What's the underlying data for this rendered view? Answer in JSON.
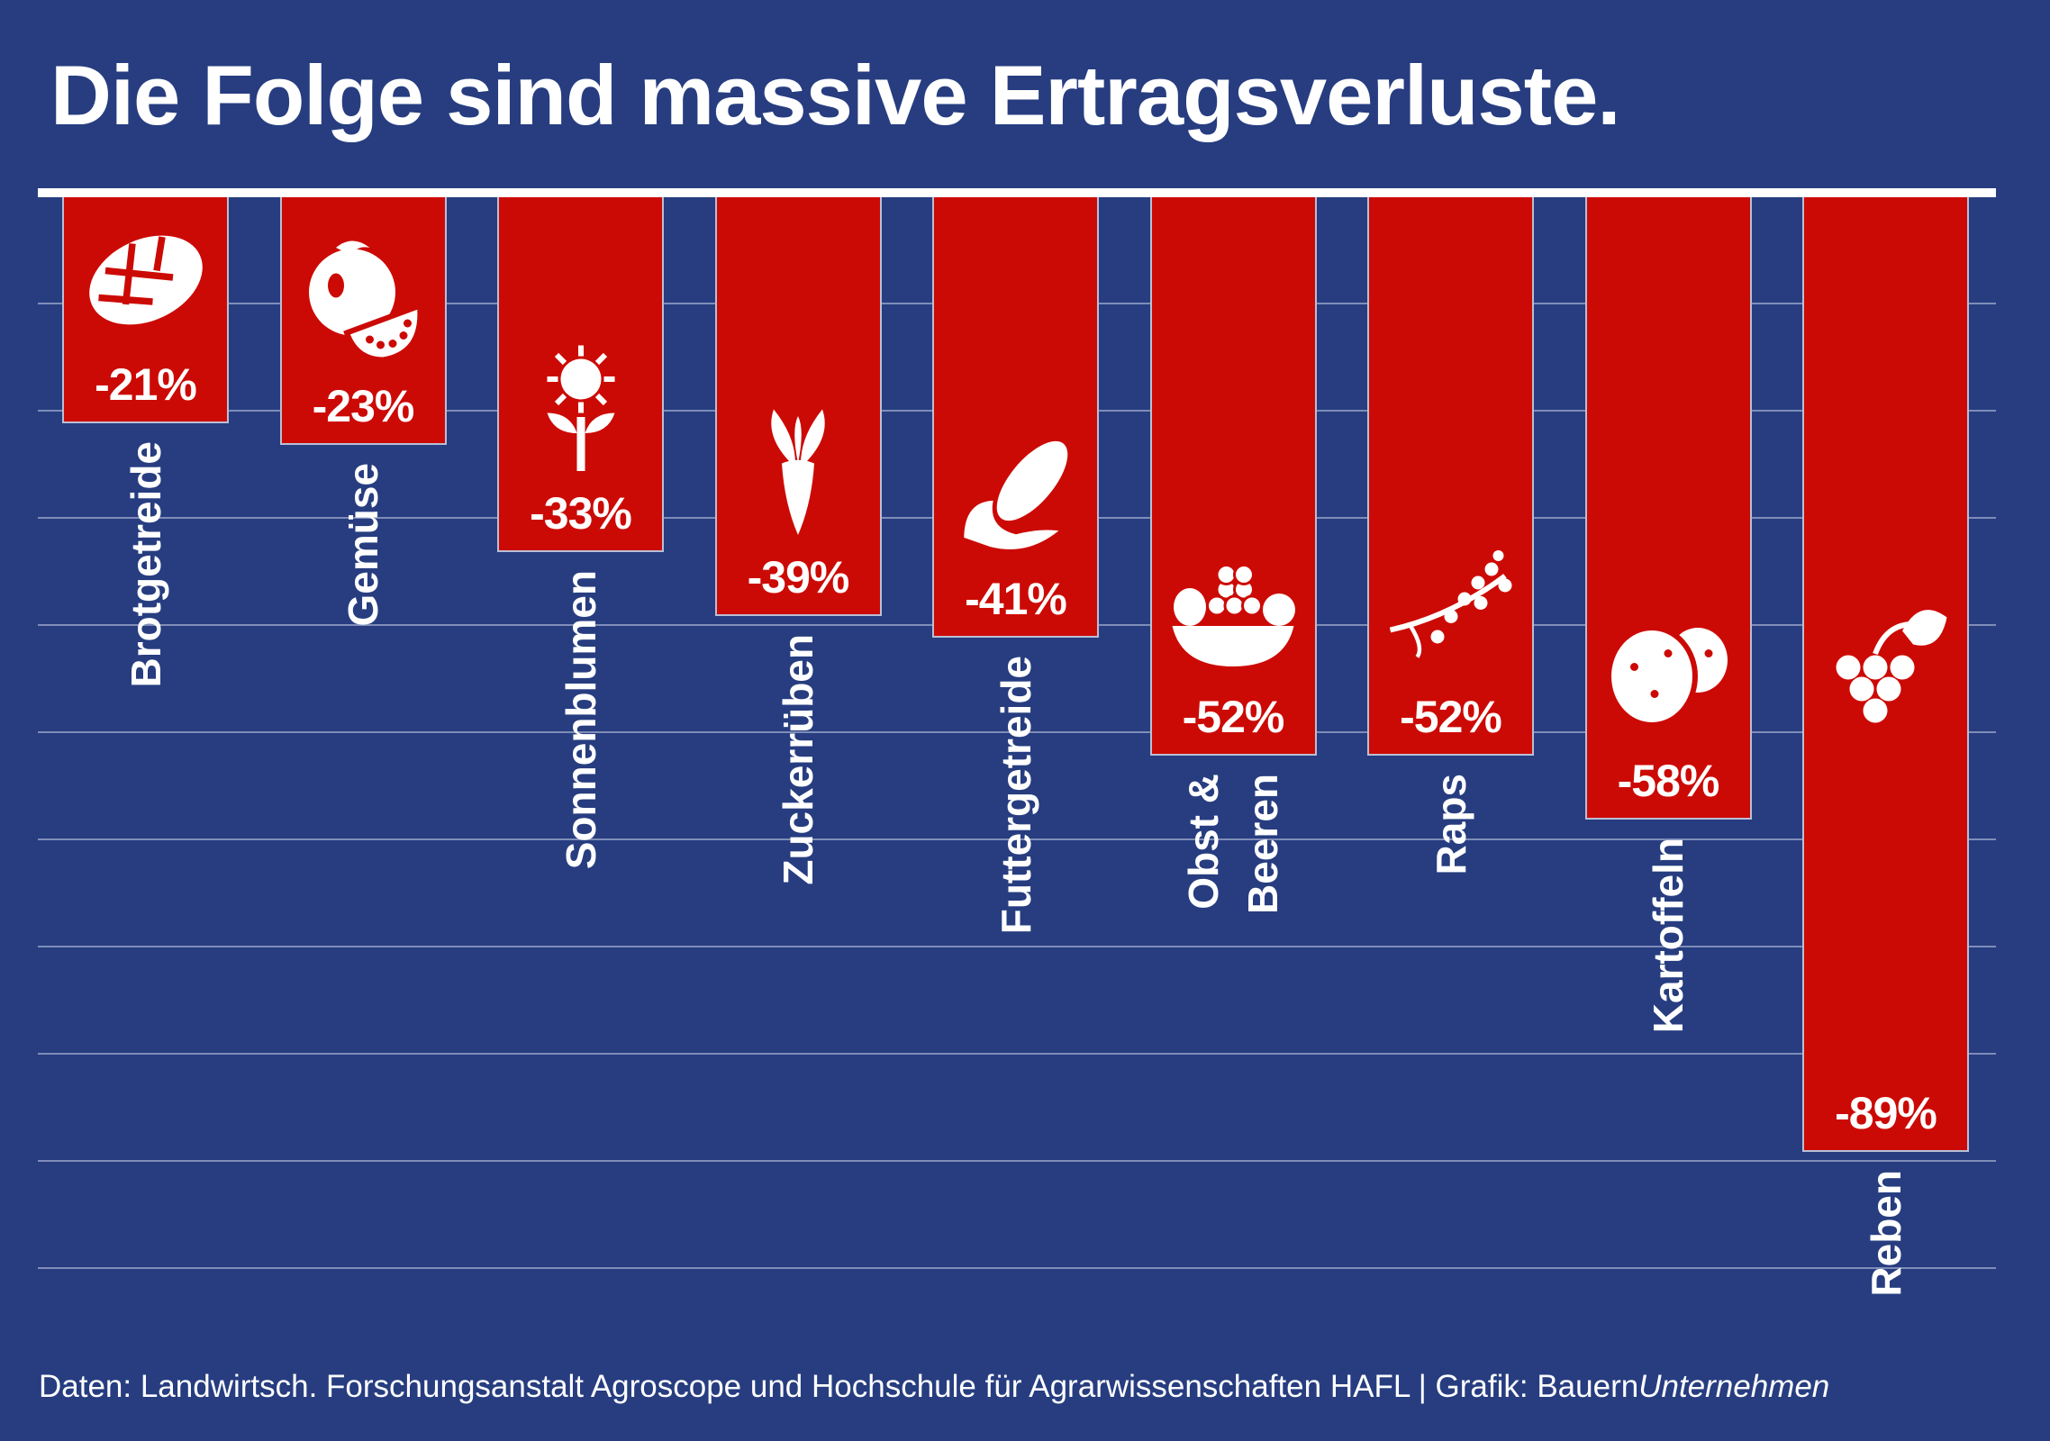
{
  "colors": {
    "background": "#273d80",
    "bar": "#cc0a05",
    "text": "#ffffff",
    "grid": "#7f8db8"
  },
  "chart_data": {
    "type": "bar",
    "title": "Die Folge sind massive Ertragsverluste.",
    "orientation": "vertical-downward",
    "categories": [
      "Brotgetreide",
      "Gemüse",
      "Sonnenblumen",
      "Zuckerrüben",
      "Futtergetreide",
      "Obst &\nBeeren",
      "Raps",
      "Kartoffeln",
      "Reben"
    ],
    "values": [
      -21,
      -23,
      -33,
      -39,
      -41,
      -52,
      -52,
      -58,
      -89
    ],
    "value_labels": [
      "-21%",
      "-23%",
      "-33%",
      "-39%",
      "-41%",
      "-52%",
      "-52%",
      "-58%",
      "-89%"
    ],
    "icons": [
      "bread-icon",
      "tomato-icon",
      "sunflower-icon",
      "beet-icon",
      "corn-icon",
      "fruit-basket-icon",
      "rapeseed-icon",
      "potato-icon",
      "grape-icon"
    ],
    "ylim": [
      -100,
      0
    ],
    "grid": true,
    "grid_step": 10,
    "xlabel": "",
    "ylabel": ""
  },
  "footer": {
    "source": "Daten: Landwirtsch. Forschungsanstalt Agroscope und Hochschule für Agrarwissenschaften HAFL | Grafik: Bauern",
    "brand_italic": "Unternehmen"
  }
}
